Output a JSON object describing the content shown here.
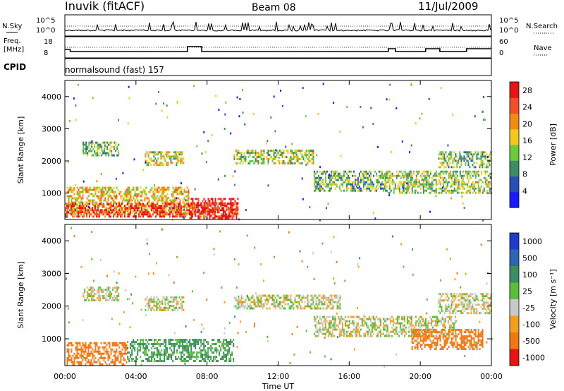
{
  "header": {
    "station": "Inuvik (fitACF)",
    "beam": "Beam 08",
    "date": "11/Jul/2009"
  },
  "strip_panels": {
    "noise_left_label": "N.Sky",
    "noise_left_ticks": [
      "10^5",
      "10^0"
    ],
    "noise_right_label": "N.Search",
    "noise_right_ticks": [
      "10^5",
      "10^0"
    ],
    "freq_label_1": "Freq.",
    "freq_label_2": "[MHz]",
    "freq_ticks": [
      "18",
      "8"
    ],
    "nave_label": "Nave",
    "nave_ticks": [
      "60",
      "0"
    ],
    "cpid_label": "CPID",
    "cpid_text": "normalsound (fast) 157"
  },
  "chart_data": [
    {
      "type": "heatmap",
      "name": "power",
      "xlabel": "",
      "ylabel": "Slant Range [km]",
      "xlim": [
        "00:00",
        "24:00"
      ],
      "ylim": [
        180,
        4500
      ],
      "yticks": [
        1000,
        2000,
        3000,
        4000
      ],
      "colorbar": {
        "label": "Power [dB]",
        "ticks": [
          4,
          8,
          12,
          16,
          20,
          24,
          28
        ],
        "range": [
          0,
          30
        ],
        "colors": [
          "#1a1aff",
          "#2850b4",
          "#3c8c64",
          "#6ec83c",
          "#f0c81e",
          "#f08c14",
          "#f05028",
          "#e61414"
        ]
      },
      "echo_regions": [
        {
          "t0": 0.1,
          "t1": 7.0,
          "r0": 400,
          "r1": 1200,
          "value": 18
        },
        {
          "t0": 7.0,
          "t1": 9.7,
          "r0": 200,
          "r1": 850,
          "value": 28
        },
        {
          "t0": 0.0,
          "t1": 9.7,
          "r0": 250,
          "r1": 700,
          "value": 26
        },
        {
          "t0": 1.0,
          "t1": 3.0,
          "r0": 2200,
          "r1": 2600,
          "value": 12
        },
        {
          "t0": 4.5,
          "t1": 6.7,
          "r0": 1900,
          "r1": 2300,
          "value": 16
        },
        {
          "t0": 9.5,
          "t1": 14.0,
          "r0": 1900,
          "r1": 2350,
          "value": 14
        },
        {
          "t0": 14.0,
          "t1": 18.0,
          "r0": 1100,
          "r1": 1700,
          "value": 12
        },
        {
          "t0": 18.0,
          "t1": 24.0,
          "r0": 1000,
          "r1": 1700,
          "value": 14
        },
        {
          "t0": 21.0,
          "t1": 24.0,
          "r0": 1800,
          "r1": 2300,
          "value": 12
        }
      ]
    },
    {
      "type": "heatmap",
      "name": "velocity",
      "xlabel": "Time UT",
      "ylabel": "Slant Range [km]",
      "xlim": [
        "00:00",
        "24:00"
      ],
      "ylim": [
        180,
        4500
      ],
      "xticks": [
        "00:00",
        "04:00",
        "08:00",
        "12:00",
        "16:00",
        "20:00",
        "00:00"
      ],
      "yticks": [
        1000,
        2000,
        3000,
        4000
      ],
      "colorbar": {
        "label": "Velocity [m s⁻¹]",
        "ticks": [
          "1000",
          "500",
          "100",
          "25",
          "-25",
          "-100",
          "-500",
          "-1000"
        ],
        "colors": [
          "#1e3cc8",
          "#2d64b4",
          "#3c8c64",
          "#5abe3c",
          "#c8c8c8",
          "#f0a01e",
          "#f07814",
          "#e61414"
        ]
      },
      "echo_regions": [
        {
          "t0": 0.1,
          "t1": 3.5,
          "r0": 250,
          "r1": 900,
          "value": -300
        },
        {
          "t0": 3.5,
          "t1": 9.5,
          "r0": 300,
          "r1": 1000,
          "value": 120
        },
        {
          "t0": 1.0,
          "t1": 3.0,
          "r0": 2200,
          "r1": 2600,
          "value": 0
        },
        {
          "t0": 4.5,
          "t1": 6.7,
          "r0": 1900,
          "r1": 2300,
          "value": 0
        },
        {
          "t0": 9.5,
          "t1": 15.5,
          "r0": 1900,
          "r1": 2350,
          "value": 0
        },
        {
          "t0": 14.0,
          "t1": 22.0,
          "r0": 1100,
          "r1": 1700,
          "value": 0
        },
        {
          "t0": 19.5,
          "t1": 23.5,
          "r0": 700,
          "r1": 1300,
          "value": -300
        },
        {
          "t0": 21.0,
          "t1": 24.0,
          "r0": 1800,
          "r1": 2400,
          "value": 0
        }
      ]
    }
  ]
}
